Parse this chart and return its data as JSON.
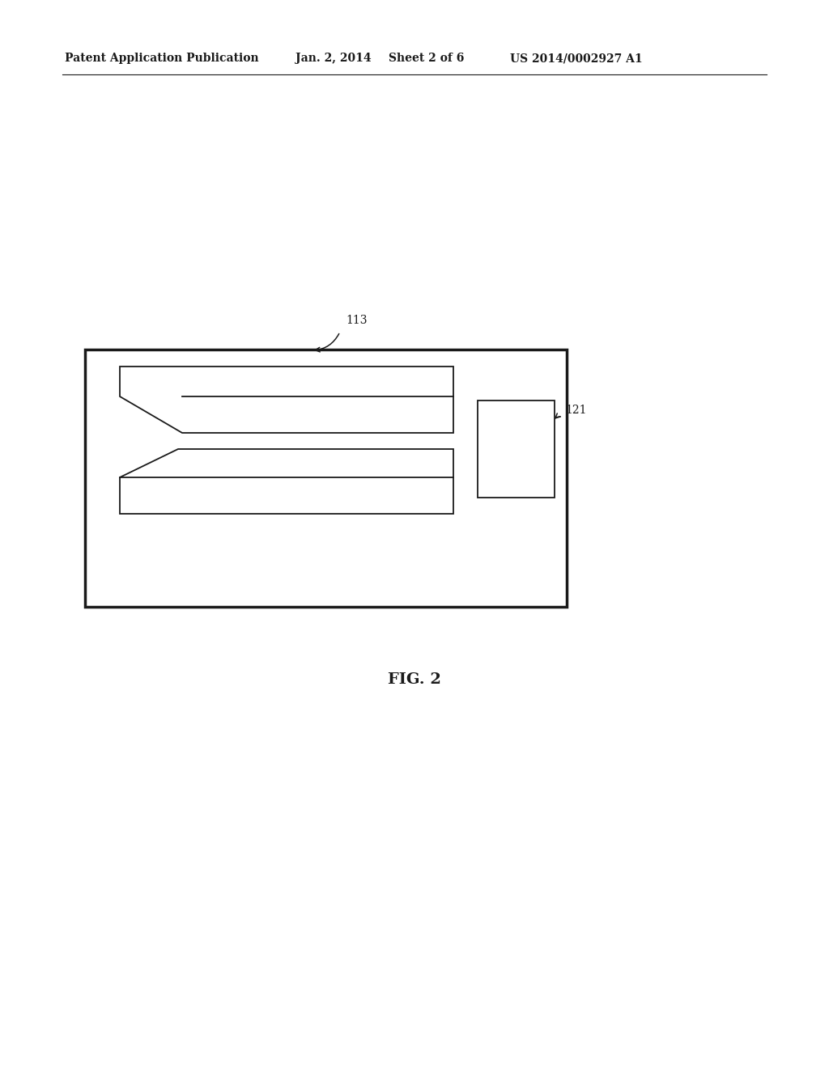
{
  "bg_color": "#ffffff",
  "line_color": "#1a1a1a",
  "header_text1": "Patent Application Publication",
  "header_text2": "Jan. 2, 2014",
  "header_text3": "Sheet 2 of 6",
  "header_text4": "US 2014/0002927 A1",
  "fig_label": "FIG. 2",
  "label_113": "113",
  "label_121": "121",
  "lw_outer": 2.5,
  "lw_inner": 1.3
}
